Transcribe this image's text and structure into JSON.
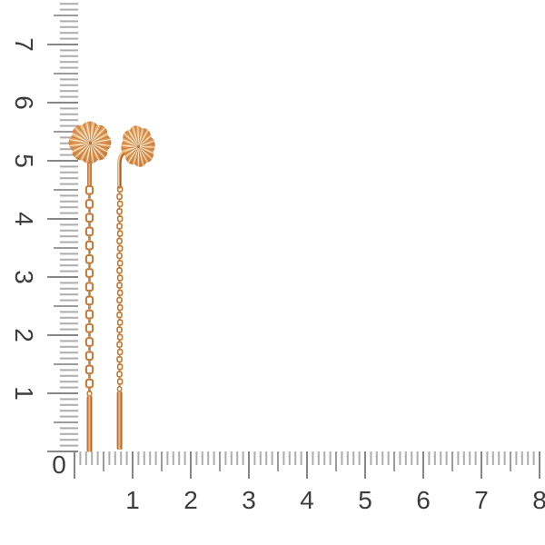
{
  "scene": {
    "background": "#ffffff"
  },
  "rulers": {
    "origin_label": "0",
    "horizontal_labels": [
      "1",
      "2",
      "3",
      "4",
      "5",
      "6",
      "7",
      "8"
    ],
    "vertical_labels": [
      "1",
      "2",
      "3",
      "4",
      "5",
      "6",
      "7"
    ],
    "label_color": "#3d3d3d",
    "tick_color_minor": "#adadad",
    "tick_color_half": "#9d9d9d",
    "tick_color_major": "#878787"
  },
  "product": {
    "item": "pair of rose-gold threader chain earrings with diamond-cut flower studs",
    "gold_dark": "#9a5522",
    "gold_mid": "#d08542",
    "gold_light": "#f4bd83",
    "gold_highlight": "#fbe4ba",
    "chain_link_color": "#c57d3b",
    "chain_connector_color": "#cc8342"
  }
}
